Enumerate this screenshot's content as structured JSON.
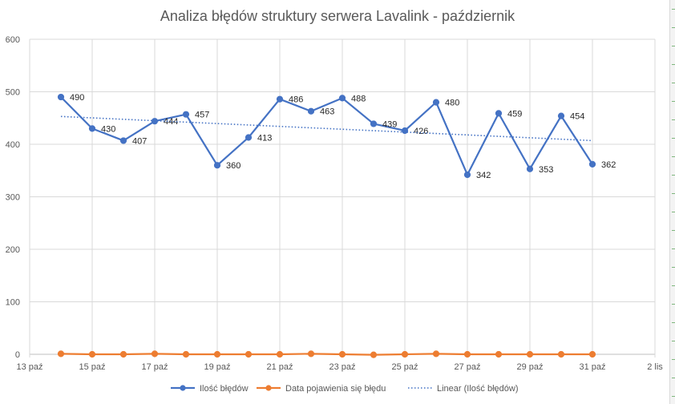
{
  "chart_data": {
    "type": "line",
    "title": "Analiza błędów struktury serwera Lavalink - październik",
    "xlabel": "",
    "ylabel": "",
    "x_ticks": [
      "13 paź",
      "15 paź",
      "17 paź",
      "19 paź",
      "21 paź",
      "23 paź",
      "25 paź",
      "27 paź",
      "29 paź",
      "31 paź",
      "2 lis"
    ],
    "y_ticks": [
      0,
      100,
      200,
      300,
      400,
      500,
      600
    ],
    "ylim": [
      0,
      600
    ],
    "grid": true,
    "legend_position": "bottom",
    "series": [
      {
        "name": "Ilość błędów",
        "color": "#4472c4",
        "x": [
          "14 paź",
          "15 paź",
          "16 paź",
          "17 paź",
          "18 paź",
          "19 paź",
          "20 paź",
          "21 paź",
          "22 paź",
          "23 paź",
          "24 paź",
          "25 paź",
          "26 paź",
          "27 paź",
          "28 paź",
          "29 paź",
          "30 paź",
          "31 paź"
        ],
        "values": [
          490,
          430,
          407,
          444,
          457,
          360,
          413,
          486,
          463,
          488,
          439,
          426,
          480,
          342,
          459,
          353,
          454,
          362
        ],
        "data_labels": true
      },
      {
        "name": "Data pojawienia się błędu",
        "color": "#ed7d31",
        "x": [
          "14 paź",
          "15 paź",
          "16 paź",
          "17 paź",
          "18 paź",
          "19 paź",
          "20 paź",
          "21 paź",
          "22 paź",
          "23 paź",
          "24 paź",
          "25 paź",
          "26 paź",
          "27 paź",
          "28 paź",
          "29 paź",
          "30 paź",
          "31 paź"
        ],
        "values": [
          1,
          0,
          0,
          1,
          0,
          0,
          0,
          0,
          1,
          0,
          -1,
          0,
          1,
          0,
          0,
          0,
          0,
          0
        ]
      },
      {
        "name": "Linear (Ilość błędów)",
        "color": "#4472c4",
        "style": "dotted",
        "x": [
          "14 paź",
          "31 paź"
        ],
        "values": [
          453,
          407
        ]
      }
    ]
  }
}
